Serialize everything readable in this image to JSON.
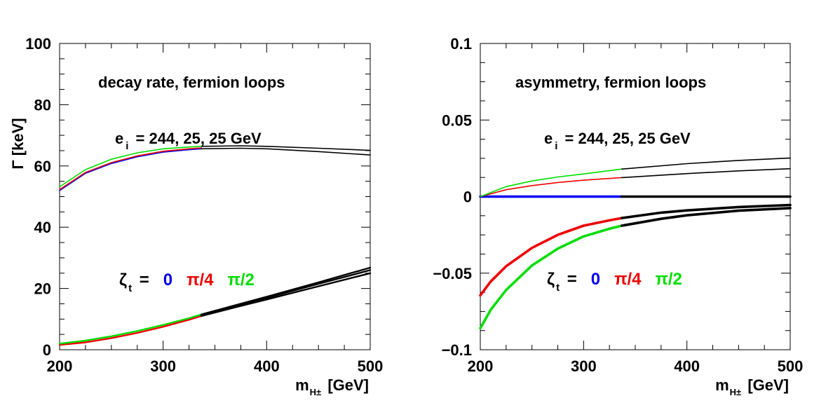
{
  "chart_data": [
    {
      "type": "line",
      "annotation": "decay rate, fermion loops",
      "energies": {
        "prefix": "e",
        "sub": "i",
        "text": "= 244, 25, 25 GeV"
      },
      "ylabel": "Γ [keV]",
      "xlabel": {
        "main": "m",
        "sub": "H±",
        "unit": "[GeV]"
      },
      "xlim": [
        200,
        500
      ],
      "ylim": [
        0,
        100
      ],
      "xticks": [
        "200",
        "300",
        "400",
        "500"
      ],
      "yticks": [
        "0",
        "20",
        "40",
        "60",
        "80",
        "100"
      ],
      "legend": {
        "label": "ζ",
        "sub": "t",
        "eq": "=",
        "entries": [
          "0",
          "π/4",
          "π/2"
        ]
      },
      "series": [
        {
          "legend_index": 0,
          "color": "#0000ee",
          "band": "upper",
          "x": [
            200,
            225,
            250,
            275,
            300,
            325,
            337
          ],
          "y": [
            52.0,
            57.6,
            60.8,
            63.0,
            64.5,
            65.3,
            65.6
          ]
        },
        {
          "legend_index": 1,
          "color": "#ee0000",
          "band": "upper",
          "x": [
            200,
            225,
            250,
            275,
            300,
            325,
            337
          ],
          "y": [
            52.3,
            57.9,
            61.1,
            63.3,
            64.8,
            65.6,
            65.9
          ]
        },
        {
          "legend_index": 2,
          "color": "#00dd00",
          "band": "upper",
          "x": [
            200,
            225,
            250,
            275,
            300,
            325,
            337
          ],
          "y": [
            53.2,
            58.8,
            62.2,
            64.3,
            65.6,
            66.2,
            66.4
          ]
        },
        {
          "color": "#000000",
          "band": "upper",
          "x": [
            337,
            375,
            400,
            450,
            500
          ],
          "y": [
            65.6,
            65.8,
            65.6,
            64.7,
            63.6
          ]
        },
        {
          "color": "#000000",
          "band": "upper",
          "x": [
            337,
            375,
            400,
            450,
            500
          ],
          "y": [
            66.4,
            66.6,
            66.4,
            65.8,
            65.1
          ]
        },
        {
          "legend_index": 1,
          "color": "#ee0000",
          "band": "lower",
          "x": [
            200,
            225,
            250,
            275,
            300,
            325,
            337
          ],
          "y": [
            1.6,
            2.4,
            3.8,
            5.5,
            7.5,
            9.8,
            11.0
          ]
        },
        {
          "legend_index": 2,
          "color": "#00dd00",
          "band": "lower",
          "x": [
            200,
            225,
            250,
            275,
            300,
            325,
            337
          ],
          "y": [
            2.0,
            3.0,
            4.4,
            6.1,
            8.1,
            10.3,
            11.5
          ]
        },
        {
          "color": "#000000",
          "band": "lower",
          "x": [
            337,
            375,
            400,
            450,
            500
          ],
          "y": [
            11.0,
            14.3,
            16.4,
            20.7,
            25.0
          ]
        },
        {
          "color": "#000000",
          "band": "lower",
          "x": [
            337,
            375,
            400,
            450,
            500
          ],
          "y": [
            11.3,
            14.7,
            16.9,
            21.5,
            26.0
          ]
        },
        {
          "color": "#000000",
          "band": "lower",
          "x": [
            337,
            375,
            400,
            450,
            500
          ],
          "y": [
            11.5,
            15.0,
            17.3,
            22.0,
            26.8
          ]
        }
      ]
    },
    {
      "type": "line",
      "annotation": "asymmetry, fermion loops",
      "energies": {
        "prefix": "e",
        "sub": "i",
        "text": "= 244, 25, 25 GeV"
      },
      "ylabel": "",
      "xlabel": {
        "main": "m",
        "sub": "H±",
        "unit": "[GeV]"
      },
      "xlim": [
        200,
        500
      ],
      "ylim": [
        -0.1,
        0.1
      ],
      "xticks": [
        "200",
        "300",
        "400",
        "500"
      ],
      "yticks": [
        "−0.1",
        "−0.05",
        "0",
        "0.05",
        "0.1"
      ],
      "legend": {
        "label": "ζ",
        "sub": "t",
        "eq": "=",
        "entries": [
          "0",
          "π/4",
          "π/2"
        ]
      },
      "series": [
        {
          "legend_index": 0,
          "color": "#0000ee",
          "width": "thick",
          "x": [
            200,
            337
          ],
          "y": [
            0,
            0
          ]
        },
        {
          "color": "#000000",
          "width": "thick",
          "x": [
            337,
            500
          ],
          "y": [
            0,
            0
          ]
        },
        {
          "legend_index": 1,
          "color": "#ee0000",
          "width": "thin",
          "x": [
            200,
            225,
            250,
            275,
            300,
            337
          ],
          "y": [
            0.0,
            0.0045,
            0.0072,
            0.0092,
            0.0107,
            0.0124
          ]
        },
        {
          "legend_index": 2,
          "color": "#00dd00",
          "width": "thin",
          "x": [
            200,
            225,
            250,
            275,
            300,
            337
          ],
          "y": [
            0.0,
            0.0065,
            0.0102,
            0.0128,
            0.0148,
            0.018
          ]
        },
        {
          "color": "#000000",
          "width": "thin",
          "x": [
            337,
            400,
            450,
            500
          ],
          "y": [
            0.0124,
            0.015,
            0.0168,
            0.0182
          ]
        },
        {
          "color": "#000000",
          "width": "thin",
          "x": [
            337,
            400,
            450,
            500
          ],
          "y": [
            0.018,
            0.0215,
            0.0236,
            0.0252
          ]
        },
        {
          "legend_index": 1,
          "color": "#ee0000",
          "width": "thick",
          "x": [
            200,
            210,
            225,
            250,
            275,
            300,
            325,
            337
          ],
          "y": [
            -0.0645,
            -0.0555,
            -0.0455,
            -0.0335,
            -0.025,
            -0.019,
            -0.0155,
            -0.014
          ]
        },
        {
          "legend_index": 2,
          "color": "#00dd00",
          "width": "thick",
          "x": [
            200,
            210,
            225,
            250,
            275,
            300,
            325,
            337
          ],
          "y": [
            -0.086,
            -0.074,
            -0.061,
            -0.045,
            -0.034,
            -0.026,
            -0.021,
            -0.019
          ]
        },
        {
          "color": "#000000",
          "width": "thick",
          "x": [
            337,
            375,
            400,
            450,
            500
          ],
          "y": [
            -0.014,
            -0.0105,
            -0.009,
            -0.0068,
            -0.0055
          ]
        },
        {
          "color": "#000000",
          "width": "thick",
          "x": [
            337,
            375,
            400,
            450,
            500
          ],
          "y": [
            -0.019,
            -0.0145,
            -0.0122,
            -0.0092,
            -0.0075
          ]
        }
      ]
    }
  ]
}
